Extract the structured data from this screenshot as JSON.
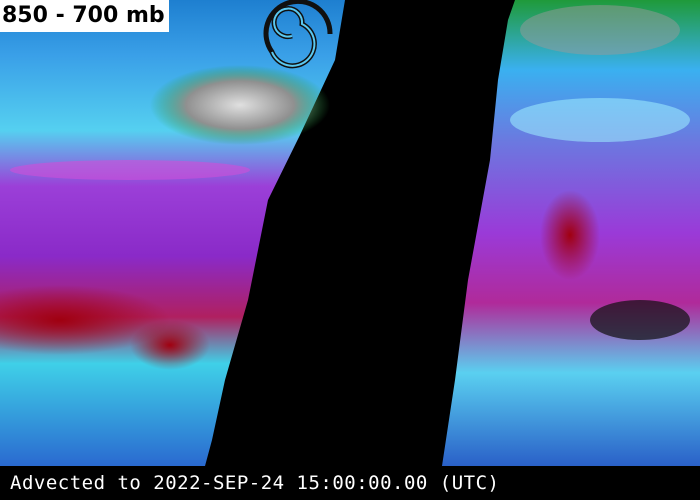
{
  "title": "850 - 700 mb",
  "caption": "Advected to 2022-SEP-24 15:00:00.00 (UTC)"
}
